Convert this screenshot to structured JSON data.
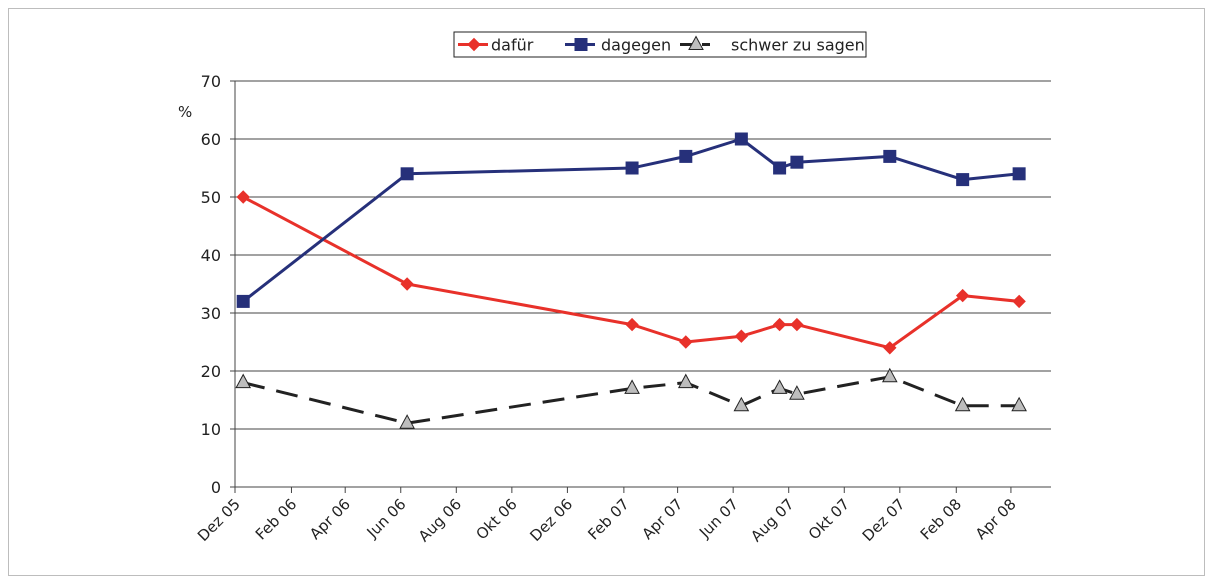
{
  "chart_data": {
    "type": "line",
    "title": "",
    "ylabel": "%",
    "ylim": [
      0,
      70
    ],
    "yticks": [
      0,
      10,
      20,
      30,
      40,
      50,
      60,
      70
    ],
    "grid": true,
    "legend_position": "top",
    "x_tick_labels": [
      "Dez 05",
      "Feb 06",
      "Apr 06",
      "Jun 06",
      "Aug 06",
      "Okt 06",
      "Dez 06",
      "Feb 07",
      "Apr 07",
      "Jun 07",
      "Aug 07",
      "Okt 07",
      "Dez 07",
      "Feb 08",
      "Apr 08"
    ],
    "x": [
      "2005-12-10",
      "2006-06-08",
      "2007-02-10",
      "2007-04-10",
      "2007-06-10",
      "2007-07-22",
      "2007-08-10",
      "2007-11-20",
      "2008-02-08",
      "2008-04-10"
    ],
    "series": [
      {
        "name": "dafür",
        "color": "#e8312a",
        "marker": "diamond",
        "dash": "solid",
        "values": [
          50,
          35,
          28,
          25,
          26,
          28,
          28,
          24,
          33,
          32
        ]
      },
      {
        "name": "dagegen",
        "color": "#26307a",
        "marker": "square",
        "dash": "solid",
        "values": [
          32,
          54,
          55,
          57,
          60,
          55,
          56,
          57,
          53,
          54
        ]
      },
      {
        "name": "schwer zu sagen",
        "color": "#222222",
        "marker": "triangle",
        "dash": "dashed",
        "values": [
          18,
          11,
          17,
          18,
          14,
          17,
          16,
          19,
          14,
          14
        ]
      }
    ]
  }
}
